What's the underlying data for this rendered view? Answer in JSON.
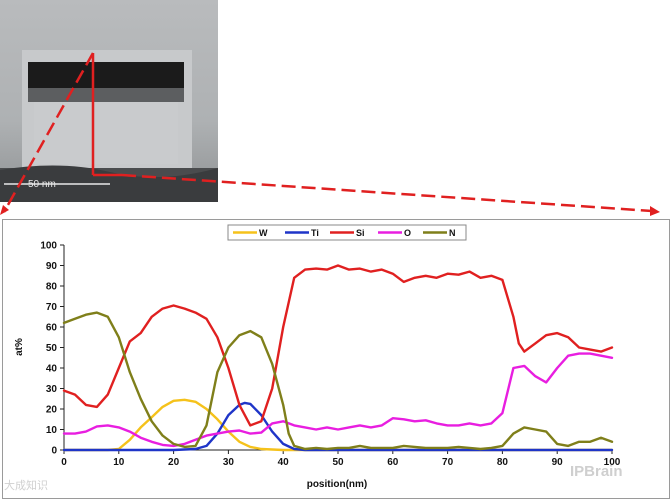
{
  "image": {
    "scale_label": "50 nm",
    "marker_color": "#e02020"
  },
  "watermarks": {
    "left": "大成知识",
    "right": "IPBrain"
  },
  "chart_data": {
    "type": "line",
    "title": "",
    "xlabel": "position(nm)",
    "ylabel": "at%",
    "xlim": [
      0,
      100
    ],
    "ylim": [
      0,
      100
    ],
    "xticks": [
      0,
      10,
      20,
      30,
      40,
      50,
      60,
      70,
      80,
      90,
      100
    ],
    "yticks": [
      0,
      10,
      20,
      30,
      40,
      50,
      60,
      70,
      80,
      90,
      100
    ],
    "grid": false,
    "legend_position": "top",
    "series": [
      {
        "name": "W",
        "color": "#f5c21b",
        "points": [
          [
            0,
            0
          ],
          [
            8,
            0
          ],
          [
            10,
            0.5
          ],
          [
            12,
            5
          ],
          [
            14,
            11
          ],
          [
            16,
            16
          ],
          [
            18,
            21
          ],
          [
            20,
            24
          ],
          [
            22,
            24.5
          ],
          [
            24,
            23.5
          ],
          [
            26,
            20
          ],
          [
            28,
            15
          ],
          [
            30,
            9
          ],
          [
            32,
            4
          ],
          [
            34,
            1.5
          ],
          [
            36,
            0.5
          ],
          [
            40,
            0
          ],
          [
            100,
            0
          ]
        ]
      },
      {
        "name": "Ti",
        "color": "#1f35c8",
        "points": [
          [
            0,
            0
          ],
          [
            20,
            0
          ],
          [
            24,
            0.5
          ],
          [
            26,
            2
          ],
          [
            28,
            8
          ],
          [
            30,
            17
          ],
          [
            32,
            22
          ],
          [
            33,
            23
          ],
          [
            34,
            22.5
          ],
          [
            36,
            17
          ],
          [
            38,
            9
          ],
          [
            40,
            3
          ],
          [
            42,
            0.5
          ],
          [
            44,
            0
          ],
          [
            100,
            0
          ]
        ]
      },
      {
        "name": "Si",
        "color": "#e02020",
        "points": [
          [
            0,
            29
          ],
          [
            2,
            27
          ],
          [
            4,
            22
          ],
          [
            6,
            21
          ],
          [
            8,
            27
          ],
          [
            10,
            40
          ],
          [
            12,
            53
          ],
          [
            14,
            57
          ],
          [
            16,
            65
          ],
          [
            18,
            69
          ],
          [
            20,
            70.5
          ],
          [
            22,
            69
          ],
          [
            24,
            67
          ],
          [
            26,
            64
          ],
          [
            28,
            55
          ],
          [
            30,
            40
          ],
          [
            32,
            22
          ],
          [
            34,
            12
          ],
          [
            36,
            14
          ],
          [
            38,
            30
          ],
          [
            40,
            60
          ],
          [
            42,
            84
          ],
          [
            44,
            88
          ],
          [
            46,
            88.5
          ],
          [
            48,
            88
          ],
          [
            50,
            90
          ],
          [
            52,
            88
          ],
          [
            54,
            88.5
          ],
          [
            56,
            87
          ],
          [
            58,
            88
          ],
          [
            60,
            86
          ],
          [
            62,
            82
          ],
          [
            64,
            84
          ],
          [
            66,
            85
          ],
          [
            68,
            84
          ],
          [
            70,
            86
          ],
          [
            72,
            85.5
          ],
          [
            74,
            87
          ],
          [
            76,
            84
          ],
          [
            78,
            85
          ],
          [
            80,
            83
          ],
          [
            82,
            65
          ],
          [
            83,
            52
          ],
          [
            84,
            48
          ],
          [
            86,
            52
          ],
          [
            88,
            56
          ],
          [
            90,
            57
          ],
          [
            92,
            55
          ],
          [
            94,
            50
          ],
          [
            96,
            49
          ],
          [
            98,
            48
          ],
          [
            100,
            50
          ]
        ]
      },
      {
        "name": "O",
        "color": "#e81ee0",
        "points": [
          [
            0,
            8
          ],
          [
            2,
            8
          ],
          [
            4,
            9
          ],
          [
            6,
            11.5
          ],
          [
            8,
            12
          ],
          [
            10,
            11
          ],
          [
            12,
            9
          ],
          [
            14,
            6
          ],
          [
            16,
            4
          ],
          [
            18,
            2.5
          ],
          [
            20,
            2
          ],
          [
            22,
            3
          ],
          [
            24,
            5
          ],
          [
            26,
            7
          ],
          [
            28,
            8
          ],
          [
            30,
            9
          ],
          [
            32,
            9.5
          ],
          [
            34,
            8
          ],
          [
            36,
            8.5
          ],
          [
            38,
            13
          ],
          [
            40,
            14
          ],
          [
            42,
            12
          ],
          [
            44,
            11
          ],
          [
            46,
            10
          ],
          [
            48,
            11
          ],
          [
            50,
            10
          ],
          [
            52,
            11
          ],
          [
            54,
            12
          ],
          [
            56,
            11
          ],
          [
            58,
            12
          ],
          [
            60,
            15.5
          ],
          [
            62,
            15
          ],
          [
            64,
            14
          ],
          [
            66,
            14.5
          ],
          [
            68,
            13
          ],
          [
            70,
            12
          ],
          [
            72,
            12
          ],
          [
            74,
            13
          ],
          [
            76,
            12
          ],
          [
            78,
            13
          ],
          [
            80,
            18
          ],
          [
            82,
            40
          ],
          [
            84,
            41
          ],
          [
            86,
            36
          ],
          [
            88,
            33
          ],
          [
            90,
            40
          ],
          [
            92,
            46
          ],
          [
            94,
            47
          ],
          [
            96,
            47
          ],
          [
            98,
            46
          ],
          [
            100,
            45
          ]
        ]
      },
      {
        "name": "N",
        "color": "#7f7f1a",
        "points": [
          [
            0,
            62
          ],
          [
            2,
            64
          ],
          [
            4,
            66
          ],
          [
            6,
            67
          ],
          [
            8,
            65
          ],
          [
            10,
            55
          ],
          [
            12,
            38
          ],
          [
            14,
            25
          ],
          [
            16,
            14
          ],
          [
            18,
            7
          ],
          [
            20,
            3
          ],
          [
            22,
            1.5
          ],
          [
            24,
            2
          ],
          [
            26,
            12
          ],
          [
            28,
            38
          ],
          [
            30,
            50
          ],
          [
            32,
            56
          ],
          [
            34,
            58
          ],
          [
            36,
            55
          ],
          [
            38,
            42
          ],
          [
            40,
            22
          ],
          [
            41,
            8
          ],
          [
            42,
            2
          ],
          [
            44,
            0.5
          ],
          [
            46,
            1
          ],
          [
            48,
            0.5
          ],
          [
            50,
            1
          ],
          [
            52,
            1
          ],
          [
            54,
            2
          ],
          [
            56,
            1
          ],
          [
            58,
            1
          ],
          [
            60,
            1
          ],
          [
            62,
            2
          ],
          [
            64,
            1.5
          ],
          [
            66,
            1
          ],
          [
            68,
            1
          ],
          [
            70,
            1
          ],
          [
            72,
            1.5
          ],
          [
            74,
            1
          ],
          [
            76,
            0.5
          ],
          [
            78,
            1
          ],
          [
            80,
            2
          ],
          [
            82,
            8
          ],
          [
            84,
            11
          ],
          [
            86,
            10
          ],
          [
            88,
            9
          ],
          [
            90,
            3
          ],
          [
            92,
            2
          ],
          [
            94,
            4
          ],
          [
            96,
            4
          ],
          [
            98,
            6
          ],
          [
            100,
            4
          ]
        ]
      }
    ]
  }
}
